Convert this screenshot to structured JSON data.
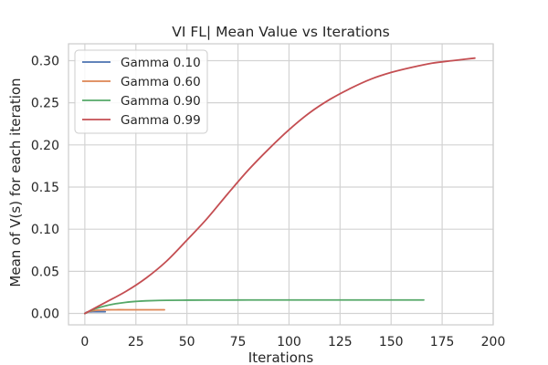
{
  "chart_data": {
    "type": "line",
    "title": "VI FL| Mean Value vs Iterations",
    "xlabel": "Iterations",
    "ylabel": "Mean of V(s) for each iteration",
    "xlim": [
      -8,
      200
    ],
    "ylim": [
      -0.0135,
      0.32
    ],
    "xticks": [
      0,
      25,
      50,
      75,
      100,
      125,
      150,
      175,
      200
    ],
    "xtick_labels": [
      "0",
      "25",
      "50",
      "75",
      "100",
      "125",
      "150",
      "175",
      "200"
    ],
    "yticks": [
      0.0,
      0.05,
      0.1,
      0.15,
      0.2,
      0.25,
      0.3
    ],
    "ytick_labels": [
      "0.00",
      "0.05",
      "0.10",
      "0.15",
      "0.20",
      "0.25",
      "0.30"
    ],
    "grid": true,
    "legend_position": "top-left",
    "series": [
      {
        "name": "Gamma 0.10",
        "color": "#4c72b0",
        "x": [
          0,
          1,
          2,
          4,
          6,
          8,
          10
        ],
        "y": [
          0.0,
          0.0015,
          0.0019,
          0.0021,
          0.0021,
          0.0021,
          0.0021
        ]
      },
      {
        "name": "Gamma 0.60",
        "color": "#dd8452",
        "x": [
          0,
          2,
          4,
          6,
          8,
          10,
          15,
          20,
          30,
          39
        ],
        "y": [
          0.0,
          0.0022,
          0.0033,
          0.0038,
          0.0041,
          0.0043,
          0.0044,
          0.0044,
          0.0044,
          0.0044
        ]
      },
      {
        "name": "Gamma 0.90",
        "color": "#55a868",
        "x": [
          0,
          5,
          10,
          15,
          20,
          25,
          30,
          40,
          50,
          60,
          70,
          80,
          100,
          120,
          140,
          166
        ],
        "y": [
          0.0,
          0.0055,
          0.009,
          0.0115,
          0.0132,
          0.0143,
          0.015,
          0.0156,
          0.0158,
          0.0159,
          0.0159,
          0.016,
          0.016,
          0.016,
          0.016,
          0.016
        ]
      },
      {
        "name": "Gamma 0.99",
        "color": "#c44e52",
        "x": [
          0,
          10,
          20,
          30,
          40,
          50,
          60,
          70,
          80,
          90,
          100,
          110,
          120,
          130,
          140,
          150,
          160,
          170,
          180,
          191
        ],
        "y": [
          0.0,
          0.013,
          0.026,
          0.042,
          0.062,
          0.087,
          0.113,
          0.142,
          0.17,
          0.195,
          0.218,
          0.238,
          0.254,
          0.267,
          0.278,
          0.286,
          0.292,
          0.297,
          0.3,
          0.303
        ]
      }
    ]
  }
}
